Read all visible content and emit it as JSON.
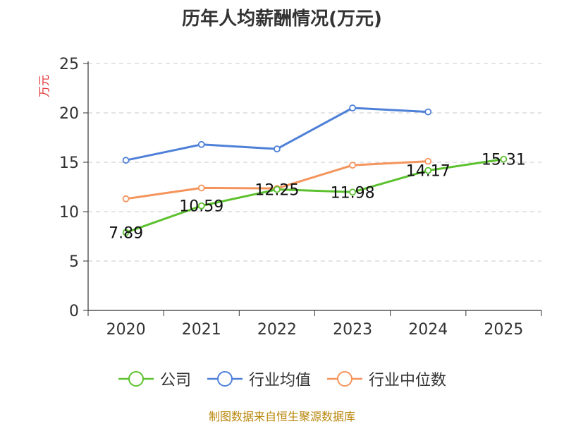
{
  "title": "历年人均薪酬情况(万元)",
  "source": "制图数据来自恒生聚源数据库",
  "chart_data": {
    "type": "line",
    "title": "历年人均薪酬情况(万元)",
    "ylabel": "万元",
    "xlabel": "",
    "ylim": [
      0,
      25
    ],
    "yticks": [
      0,
      5,
      10,
      15,
      20,
      25
    ],
    "grid": "horizontal dashed",
    "legend_position": "bottom",
    "categories": [
      "2020",
      "2021",
      "2022",
      "2023",
      "2024",
      "2025"
    ],
    "series": [
      {
        "name": "公司",
        "color": "#5cc12f",
        "values": [
          7.89,
          10.59,
          12.25,
          11.98,
          14.17,
          15.31
        ],
        "labels": [
          "7.89",
          "10.59",
          "12.25",
          "11.98",
          "14.17",
          "15.31"
        ]
      },
      {
        "name": "行业均值",
        "color": "#4e80d8",
        "values": [
          15.2,
          16.8,
          16.35,
          20.5,
          20.1,
          null
        ]
      },
      {
        "name": "行业中位数",
        "color": "#f4945c",
        "values": [
          11.3,
          12.4,
          12.35,
          14.7,
          15.1,
          null
        ]
      }
    ]
  }
}
